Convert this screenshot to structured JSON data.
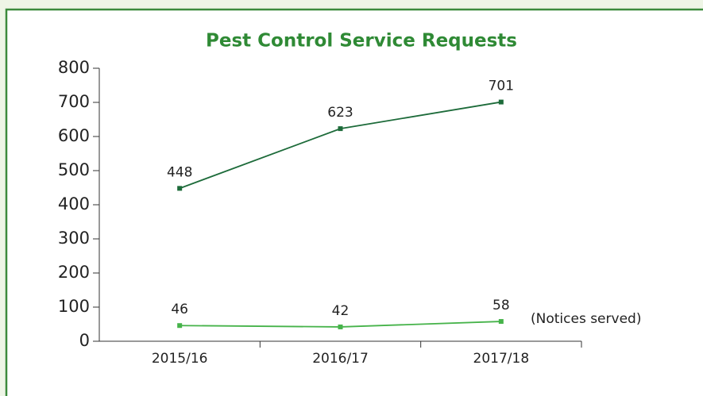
{
  "chart_data": {
    "type": "line",
    "title": "Pest Control Service Requests",
    "categories": [
      "2015/16",
      "2016/17",
      "2017/18"
    ],
    "series": [
      {
        "color": "#1d6b3a",
        "values": [
          448,
          623,
          701
        ]
      },
      {
        "name": "(Notices served)",
        "color": "#46b34a",
        "values": [
          46,
          42,
          58
        ]
      }
    ],
    "ylim": [
      0,
      800
    ],
    "yticks": [
      0,
      100,
      200,
      300,
      400,
      500,
      600,
      700,
      800
    ],
    "grid": false
  }
}
